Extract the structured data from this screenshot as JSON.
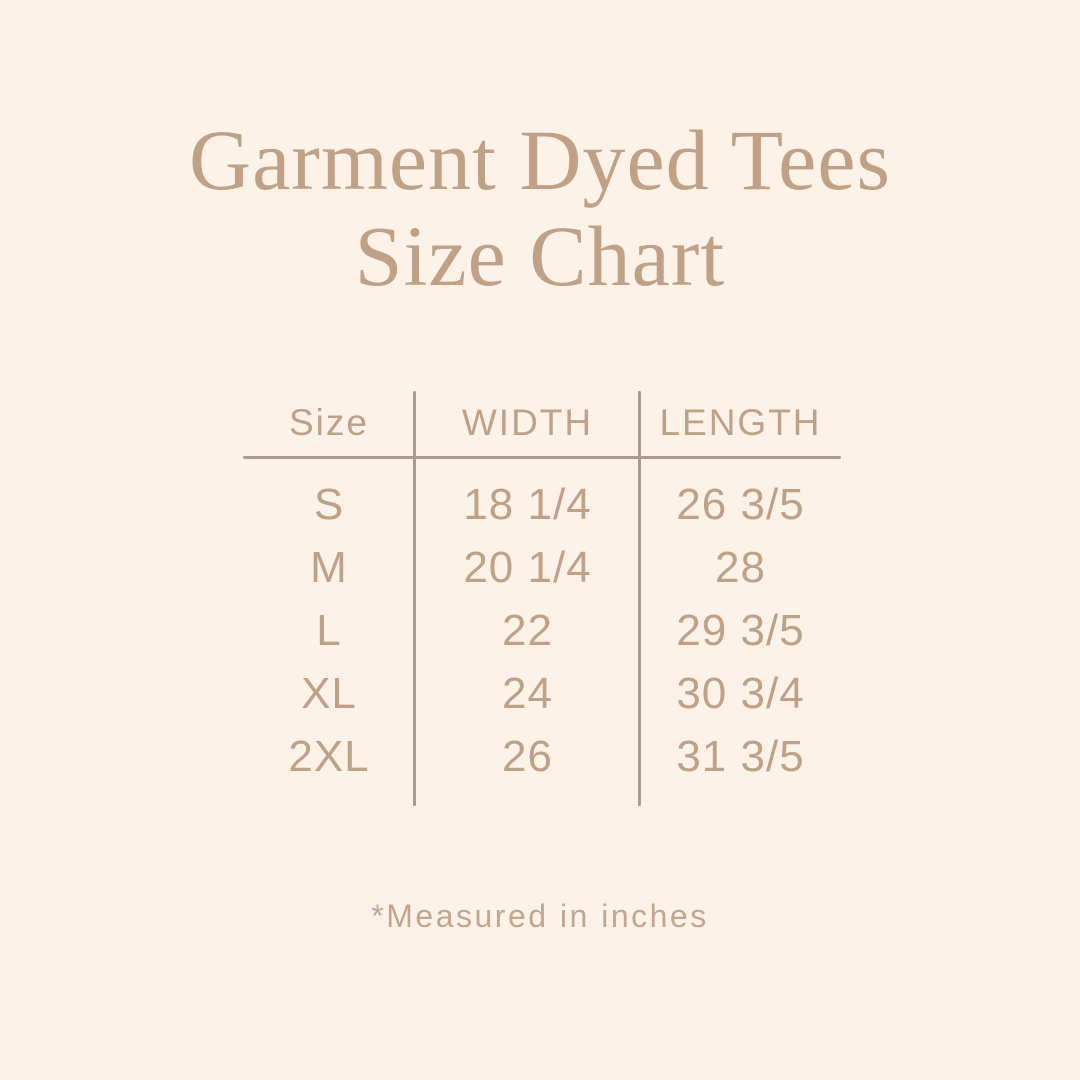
{
  "title": {
    "line1": "Garment Dyed Tees",
    "line2": "Size Chart"
  },
  "chart_data": {
    "type": "table",
    "title": "Garment Dyed Tees Size Chart",
    "columns": [
      "Size",
      "WIDTH",
      "LENGTH"
    ],
    "rows": [
      [
        "S",
        "18 1/4",
        "26 3/5"
      ],
      [
        "M",
        "20 1/4",
        "28"
      ],
      [
        "L",
        "22",
        "29 3/5"
      ],
      [
        "XL",
        "24",
        "30 3/4"
      ],
      [
        "2XL",
        "26",
        "31 3/5"
      ]
    ],
    "unit_note": "*Measured in inches"
  },
  "footnote": {
    "text": "*Measured in inches"
  },
  "colors": {
    "background": "#fdf2e8",
    "title_text": "#c1a185",
    "table_text": "#bfa187",
    "divider_line": "#a99b8e",
    "footnote_text": "#c3a68d"
  }
}
